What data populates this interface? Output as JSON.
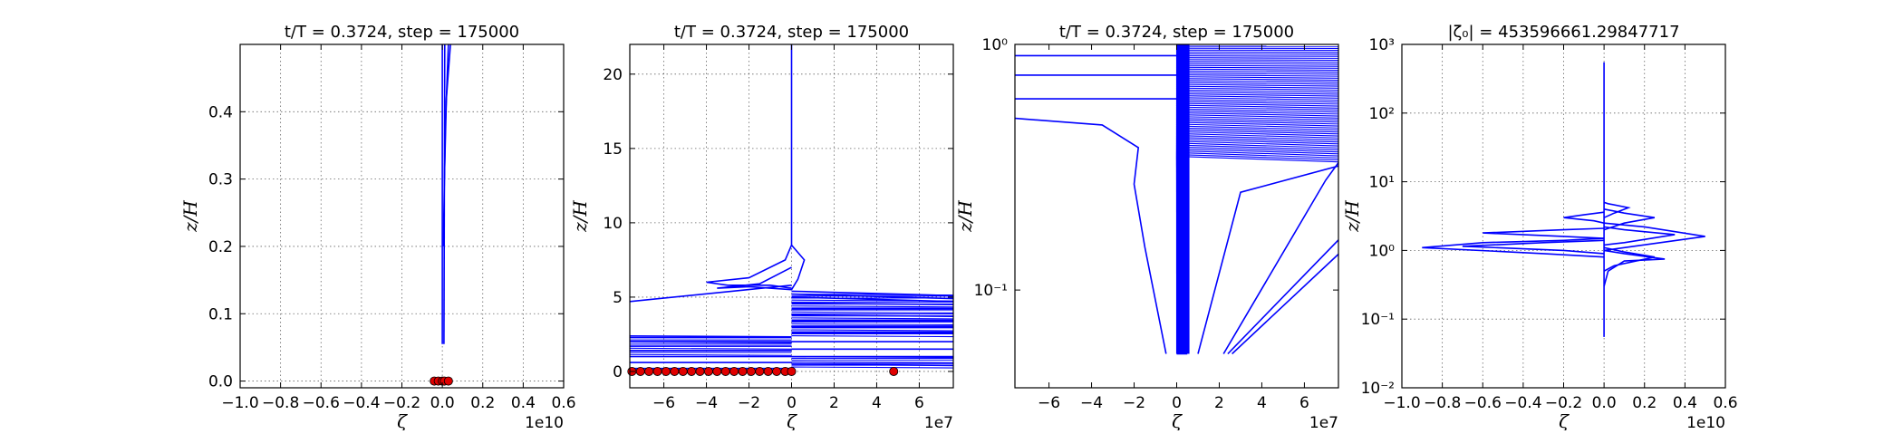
{
  "chart_data": [
    {
      "type": "line",
      "title": "t/T = 0.3724, step = 175000",
      "xlabel": "ζ",
      "ylabel": "z/H",
      "x_offset_label": "1e10",
      "xlim": [
        -1.0,
        0.6
      ],
      "ylim": [
        -0.01,
        0.5
      ],
      "xscale": "linear",
      "yscale": "linear",
      "grid": true,
      "x_ticks": [
        -1.0,
        -0.8,
        -0.6,
        -0.4,
        -0.2,
        0.0,
        0.2,
        0.4,
        0.6
      ],
      "x_tick_labels": [
        "−1.0",
        "−0.8",
        "−0.6",
        "−0.4",
        "−0.2",
        "0.0",
        "0.2",
        "0.4",
        "0.6"
      ],
      "y_ticks": [
        0.0,
        0.1,
        0.2,
        0.3,
        0.4
      ],
      "y_tick_labels": [
        "0.0",
        "0.1",
        "0.2",
        "0.3",
        "0.4"
      ],
      "series": [
        {
          "color": "#0000ff",
          "points": [
            [
              0.0,
              0.055
            ],
            [
              0.0,
              0.5
            ]
          ]
        },
        {
          "color": "#0000ff",
          "points": [
            [
              0.008,
              0.055
            ],
            [
              0.012,
              0.5
            ]
          ]
        },
        {
          "color": "#0000ff",
          "points": [
            [
              0.005,
              0.2
            ],
            [
              0.015,
              0.38
            ],
            [
              0.03,
              0.5
            ]
          ]
        },
        {
          "color": "#0000ff",
          "points": [
            [
              0.01,
              0.3
            ],
            [
              0.02,
              0.42
            ],
            [
              0.04,
              0.5
            ]
          ]
        }
      ],
      "markers": {
        "color": "#e00000",
        "points": [
          [
            -0.04,
            0.0
          ],
          [
            -0.02,
            0.0
          ],
          [
            0.0,
            0.0
          ],
          [
            0.01,
            0.0
          ],
          [
            0.03,
            0.0
          ]
        ]
      }
    },
    {
      "type": "line",
      "title": "t/T = 0.3724, step = 175000",
      "xlabel": "ζ",
      "ylabel": "z/H",
      "x_offset_label": "1e7",
      "xlim": [
        -7.6,
        7.6
      ],
      "ylim": [
        -1.1,
        22.0
      ],
      "xscale": "linear",
      "yscale": "linear",
      "grid": true,
      "x_ticks": [
        -6,
        -4,
        -2,
        0,
        2,
        4,
        6
      ],
      "x_tick_labels": [
        "−6",
        "−4",
        "−2",
        "0",
        "2",
        "4",
        "6"
      ],
      "y_ticks": [
        0,
        5,
        10,
        15,
        20
      ],
      "y_tick_labels": [
        "0",
        "5",
        "10",
        "15",
        "20"
      ],
      "series": [
        {
          "color": "#0000ff",
          "points": [
            [
              0,
              22
            ],
            [
              0,
              8.5
            ],
            [
              -0.3,
              7.5
            ],
            [
              -2,
              6.3
            ],
            [
              -4,
              6.0
            ],
            [
              -3,
              5.8
            ],
            [
              -1,
              5.8
            ],
            [
              0,
              5.6
            ]
          ]
        },
        {
          "color": "#0000ff",
          "points": [
            [
              0,
              7
            ],
            [
              -1.5,
              5.9
            ],
            [
              -3.5,
              5.6
            ],
            [
              -2,
              5.7
            ],
            [
              0,
              5.5
            ]
          ]
        },
        {
          "color": "#0000ff",
          "points": [
            [
              0,
              5.8
            ],
            [
              -7.6,
              4.7
            ]
          ]
        },
        {
          "color": "#0000ff",
          "points": [
            [
              0,
              5.5
            ],
            [
              0.3,
              6.2
            ],
            [
              0.6,
              7.5
            ],
            [
              0,
              8.5
            ]
          ]
        },
        {
          "color": "#0000ff",
          "points": [
            [
              0,
              5.4
            ],
            [
              7.6,
              5.1
            ]
          ]
        },
        {
          "color": "#0000ff",
          "points": [
            [
              0,
              5.2
            ],
            [
              7.6,
              4.9
            ]
          ]
        },
        {
          "color": "#0000ff",
          "points": [
            [
              0,
              5.0
            ],
            [
              7.6,
              4.7
            ]
          ]
        },
        {
          "color": "#0000ff",
          "points": [
            [
              0,
              4.6
            ],
            [
              7.6,
              4.5
            ]
          ]
        },
        {
          "color": "#0000ff",
          "points": [
            [
              0,
              4.2
            ],
            [
              7.6,
              4.2
            ]
          ]
        },
        {
          "color": "#0000ff",
          "points": [
            [
              0,
              3.8
            ],
            [
              7.6,
              3.7
            ]
          ]
        },
        {
          "color": "#0000ff",
          "points": [
            [
              0,
              3.4
            ],
            [
              7.6,
              3.4
            ]
          ]
        },
        {
          "color": "#0000ff",
          "points": [
            [
              0,
              3.0
            ],
            [
              7.6,
              3.0
            ]
          ]
        },
        {
          "color": "#0000ff",
          "points": [
            [
              0,
              2.6
            ],
            [
              7.6,
              2.6
            ]
          ]
        },
        {
          "color": "#0000ff",
          "points": [
            [
              0,
              2.0
            ],
            [
              7.6,
              2.0
            ]
          ]
        },
        {
          "color": "#0000ff",
          "points": [
            [
              0,
              1.5
            ],
            [
              7.6,
              1.5
            ]
          ]
        },
        {
          "color": "#0000ff",
          "points": [
            [
              0,
              1.0
            ],
            [
              7.6,
              1.0
            ]
          ]
        },
        {
          "color": "#0000ff",
          "points": [
            [
              0,
              0.5
            ],
            [
              7.6,
              0.4
            ]
          ]
        },
        {
          "color": "#0000ff",
          "points": [
            [
              0,
              2.3
            ],
            [
              -7.6,
              2.3
            ]
          ]
        },
        {
          "color": "#0000ff",
          "points": [
            [
              0,
              2.0
            ],
            [
              -7.6,
              2.0
            ]
          ]
        },
        {
          "color": "#0000ff",
          "points": [
            [
              0,
              1.7
            ],
            [
              -7.6,
              1.7
            ]
          ]
        },
        {
          "color": "#0000ff",
          "points": [
            [
              0,
              1.4
            ],
            [
              -7.6,
              1.4
            ]
          ]
        },
        {
          "color": "#0000ff",
          "points": [
            [
              0,
              1.0
            ],
            [
              -7.6,
              1.0
            ]
          ]
        },
        {
          "color": "#0000ff",
          "points": [
            [
              0,
              0.6
            ],
            [
              -7.6,
              0.6
            ]
          ]
        },
        {
          "color": "#0000ff",
          "points": [
            [
              0,
              0.2
            ],
            [
              -7.6,
              0.2
            ]
          ]
        }
      ],
      "bands": [
        {
          "color": "#0000ff",
          "x0": -7.6,
          "x1": 0,
          "y0": 1.0,
          "y1": 2.4
        },
        {
          "color": "#0000ff",
          "x0": 0,
          "x1": 7.6,
          "y0": 2.4,
          "y1": 5.2
        },
        {
          "color": "#0000ff",
          "x0": 0,
          "x1": 7.6,
          "y0": 0.3,
          "y1": 1.0
        }
      ],
      "markers": {
        "color": "#e00000",
        "points": [
          [
            -7.5,
            0
          ],
          [
            -7.1,
            0
          ],
          [
            -6.7,
            0
          ],
          [
            -6.3,
            0
          ],
          [
            -5.9,
            0
          ],
          [
            -5.5,
            0
          ],
          [
            -5.1,
            0
          ],
          [
            -4.7,
            0
          ],
          [
            -4.3,
            0
          ],
          [
            -3.9,
            0
          ],
          [
            -3.5,
            0
          ],
          [
            -3.1,
            0
          ],
          [
            -2.7,
            0
          ],
          [
            -2.3,
            0
          ],
          [
            -1.9,
            0
          ],
          [
            -1.5,
            0
          ],
          [
            -1.1,
            0
          ],
          [
            -0.7,
            0
          ],
          [
            -0.3,
            0
          ],
          [
            0,
            0
          ],
          [
            4.8,
            0
          ]
        ]
      }
    },
    {
      "type": "line",
      "title": "t/T = 0.3724, step = 175000",
      "xlabel": "ζ",
      "ylabel": "z/H",
      "x_offset_label": "1e7",
      "xlim": [
        -7.6,
        7.6
      ],
      "ylim": [
        0.04,
        1.0
      ],
      "xscale": "linear",
      "yscale": "log",
      "grid": false,
      "x_ticks": [
        -6,
        -4,
        -2,
        0,
        2,
        4,
        6
      ],
      "x_tick_labels": [
        "−6",
        "−4",
        "−2",
        "0",
        "2",
        "4",
        "6"
      ],
      "y_ticks": [
        0.1,
        1.0
      ],
      "y_tick_labels": [
        "10⁻¹",
        "10⁰"
      ],
      "series": [
        {
          "color": "#0000ff",
          "points": [
            [
              -7.6,
              0.9
            ],
            [
              0,
              0.9
            ]
          ]
        },
        {
          "color": "#0000ff",
          "points": [
            [
              -7.6,
              0.75
            ],
            [
              0,
              0.75
            ]
          ]
        },
        {
          "color": "#0000ff",
          "points": [
            [
              -7.6,
              0.6
            ],
            [
              0,
              0.6
            ]
          ]
        },
        {
          "color": "#0000ff",
          "points": [
            [
              -7.6,
              0.5
            ],
            [
              -3.5,
              0.47
            ],
            [
              -1.8,
              0.38
            ],
            [
              -2.0,
              0.27
            ],
            [
              -1.5,
              0.15
            ],
            [
              -0.5,
              0.055
            ]
          ]
        },
        {
          "color": "#0000ff",
          "points": [
            [
              0,
              0.055
            ],
            [
              0.5,
              0.055
            ]
          ]
        },
        {
          "color": "#0000ff",
          "points": [
            [
              1.0,
              0.055
            ],
            [
              3.0,
              0.25
            ],
            [
              7.6,
              0.32
            ]
          ]
        },
        {
          "color": "#0000ff",
          "points": [
            [
              2.2,
              0.055
            ],
            [
              7.0,
              0.28
            ],
            [
              7.6,
              0.33
            ]
          ]
        },
        {
          "color": "#0000ff",
          "points": [
            [
              2.4,
              0.055
            ],
            [
              7.6,
              0.16
            ]
          ]
        },
        {
          "color": "#0000ff",
          "points": [
            [
              2.6,
              0.055
            ],
            [
              7.6,
              0.14
            ]
          ]
        }
      ],
      "fan": {
        "color": "#0000ff",
        "x_left": 0,
        "x_right": 7.6,
        "y_bottom": 0.055,
        "y_top_min": 0.35,
        "y_top_max": 1.0,
        "count": 60
      },
      "markers": {
        "color": "#e00000",
        "points": []
      }
    },
    {
      "type": "line",
      "title": "|ζ₀| = 453596661.29847717",
      "xlabel": "ζ",
      "ylabel": "z/H",
      "x_offset_label": "1e10",
      "xlim": [
        -1.0,
        0.6
      ],
      "ylim": [
        0.01,
        1000
      ],
      "xscale": "linear",
      "yscale": "log",
      "grid": true,
      "x_ticks": [
        -1.0,
        -0.8,
        -0.6,
        -0.4,
        -0.2,
        0.0,
        0.2,
        0.4,
        0.6
      ],
      "x_tick_labels": [
        "−1.0",
        "−0.8",
        "−0.6",
        "−0.4",
        "−0.2",
        "0.0",
        "0.2",
        "0.4",
        "0.6"
      ],
      "y_ticks": [
        0.01,
        0.1,
        1,
        10,
        100,
        1000
      ],
      "y_tick_labels": [
        "10⁻²",
        "10⁻¹",
        "10⁰",
        "10¹",
        "10²",
        "10³"
      ],
      "series": [
        {
          "color": "#0000ff",
          "points": [
            [
              0,
              0.055
            ],
            [
              0,
              550
            ]
          ]
        },
        {
          "color": "#0000ff",
          "points": [
            [
              0,
              0.3
            ],
            [
              0.02,
              0.5
            ],
            [
              0.1,
              0.7
            ],
            [
              0.3,
              0.75
            ],
            [
              0.1,
              0.9
            ],
            [
              0,
              1.0
            ]
          ]
        },
        {
          "color": "#0000ff",
          "points": [
            [
              0,
              0.5
            ],
            [
              0.05,
              0.6
            ],
            [
              0.25,
              0.8
            ],
            [
              0.1,
              0.95
            ],
            [
              0,
              1.1
            ]
          ]
        },
        {
          "color": "#0000ff",
          "points": [
            [
              0,
              0.8
            ],
            [
              -0.3,
              0.9
            ],
            [
              -0.9,
              1.1
            ],
            [
              -0.6,
              1.3
            ],
            [
              -0.2,
              1.4
            ],
            [
              0,
              1.5
            ]
          ]
        },
        {
          "color": "#0000ff",
          "points": [
            [
              0,
              0.9
            ],
            [
              -0.2,
              1.0
            ],
            [
              -0.7,
              1.15
            ],
            [
              -0.3,
              1.3
            ],
            [
              0,
              1.4
            ]
          ]
        },
        {
          "color": "#0000ff",
          "points": [
            [
              0,
              1.0
            ],
            [
              0.1,
              1.1
            ],
            [
              0.5,
              1.6
            ],
            [
              0.2,
              2.2
            ],
            [
              0,
              2.5
            ]
          ]
        },
        {
          "color": "#0000ff",
          "points": [
            [
              0,
              1.2
            ],
            [
              0.1,
              1.3
            ],
            [
              0.35,
              1.7
            ],
            [
              0.1,
              2.0
            ],
            [
              0,
              2.2
            ]
          ]
        },
        {
          "color": "#0000ff",
          "points": [
            [
              0,
              1.5
            ],
            [
              -0.2,
              1.6
            ],
            [
              -0.6,
              1.8
            ],
            [
              -0.2,
              2.0
            ],
            [
              0,
              2.1
            ]
          ]
        },
        {
          "color": "#0000ff",
          "points": [
            [
              0,
              2.0
            ],
            [
              0.1,
              2.5
            ],
            [
              0.25,
              3.0
            ],
            [
              0.1,
              3.5
            ],
            [
              0,
              4.0
            ]
          ]
        },
        {
          "color": "#0000ff",
          "points": [
            [
              0,
              2.5
            ],
            [
              -0.05,
              2.7
            ],
            [
              -0.2,
              3.0
            ],
            [
              -0.1,
              3.3
            ],
            [
              0,
              3.6
            ]
          ]
        },
        {
          "color": "#0000ff",
          "points": [
            [
              0,
              3.0
            ],
            [
              0.05,
              3.5
            ],
            [
              0.12,
              4.2
            ],
            [
              0.02,
              4.8
            ],
            [
              0,
              5.0
            ]
          ]
        }
      ],
      "markers": {
        "color": "#e00000",
        "points": []
      }
    }
  ]
}
